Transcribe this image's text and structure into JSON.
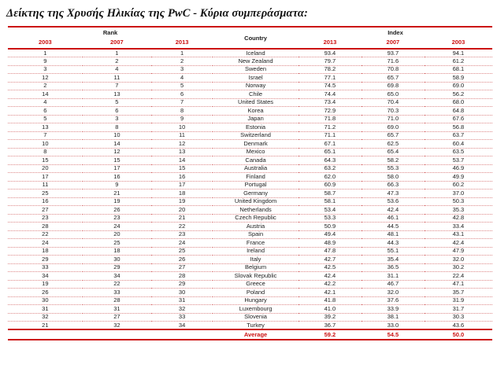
{
  "title": "Δείκτης της Χρυσής Ηλικίας της PwC - Κύρια συμπεράσματα:",
  "colors": {
    "accent_red": "#cc1111",
    "dotted_separator": "#dd8888",
    "text_black": "#1a1a1a"
  },
  "table": {
    "group_headers": {
      "rank": "Rank",
      "country": "Country",
      "index": "Index"
    },
    "rank_years": [
      "2003",
      "2007",
      "2013"
    ],
    "index_years": [
      "2013",
      "2007",
      "2003"
    ],
    "rows": [
      {
        "rank_2003": "1",
        "rank_2007": "1",
        "rank_2013": "1",
        "country": "Iceland",
        "index_2013": "93.4",
        "index_2007": "93.7",
        "index_2003": "94.1"
      },
      {
        "rank_2003": "9",
        "rank_2007": "2",
        "rank_2013": "2",
        "country": "New Zealand",
        "index_2013": "79.7",
        "index_2007": "71.6",
        "index_2003": "61.2"
      },
      {
        "rank_2003": "3",
        "rank_2007": "4",
        "rank_2013": "3",
        "country": "Sweden",
        "index_2013": "78.2",
        "index_2007": "70.8",
        "index_2003": "68.1"
      },
      {
        "rank_2003": "12",
        "rank_2007": "11",
        "rank_2013": "4",
        "country": "Israel",
        "index_2013": "77.1",
        "index_2007": "65.7",
        "index_2003": "58.9"
      },
      {
        "rank_2003": "2",
        "rank_2007": "7",
        "rank_2013": "5",
        "country": "Norway",
        "index_2013": "74.5",
        "index_2007": "69.8",
        "index_2003": "69.0"
      },
      {
        "rank_2003": "14",
        "rank_2007": "13",
        "rank_2013": "6",
        "country": "Chile",
        "index_2013": "74.4",
        "index_2007": "65.0",
        "index_2003": "56.2"
      },
      {
        "rank_2003": "4",
        "rank_2007": "5",
        "rank_2013": "7",
        "country": "United States",
        "index_2013": "73.4",
        "index_2007": "70.4",
        "index_2003": "68.0"
      },
      {
        "rank_2003": "6",
        "rank_2007": "6",
        "rank_2013": "8",
        "country": "Korea",
        "index_2013": "72.9",
        "index_2007": "70.3",
        "index_2003": "64.8"
      },
      {
        "rank_2003": "5",
        "rank_2007": "3",
        "rank_2013": "9",
        "country": "Japan",
        "index_2013": "71.8",
        "index_2007": "71.0",
        "index_2003": "67.6"
      },
      {
        "rank_2003": "13",
        "rank_2007": "8",
        "rank_2013": "10",
        "country": "Estonia",
        "index_2013": "71.2",
        "index_2007": "69.0",
        "index_2003": "56.8"
      },
      {
        "rank_2003": "7",
        "rank_2007": "10",
        "rank_2013": "11",
        "country": "Switzerland",
        "index_2013": "71.1",
        "index_2007": "65.7",
        "index_2003": "63.7"
      },
      {
        "rank_2003": "10",
        "rank_2007": "14",
        "rank_2013": "12",
        "country": "Denmark",
        "index_2013": "67.1",
        "index_2007": "62.5",
        "index_2003": "60.4"
      },
      {
        "rank_2003": "8",
        "rank_2007": "12",
        "rank_2013": "13",
        "country": "Mexico",
        "index_2013": "65.1",
        "index_2007": "65.4",
        "index_2003": "63.5"
      },
      {
        "rank_2003": "15",
        "rank_2007": "15",
        "rank_2013": "14",
        "country": "Canada",
        "index_2013": "64.3",
        "index_2007": "58.2",
        "index_2003": "53.7"
      },
      {
        "rank_2003": "20",
        "rank_2007": "17",
        "rank_2013": "15",
        "country": "Australia",
        "index_2013": "63.2",
        "index_2007": "55.3",
        "index_2003": "46.9"
      },
      {
        "rank_2003": "17",
        "rank_2007": "16",
        "rank_2013": "16",
        "country": "Finland",
        "index_2013": "62.0",
        "index_2007": "58.0",
        "index_2003": "49.9"
      },
      {
        "rank_2003": "11",
        "rank_2007": "9",
        "rank_2013": "17",
        "country": "Portugal",
        "index_2013": "60.9",
        "index_2007": "66.3",
        "index_2003": "60.2"
      },
      {
        "rank_2003": "25",
        "rank_2007": "21",
        "rank_2013": "18",
        "country": "Germany",
        "index_2013": "58.7",
        "index_2007": "47.3",
        "index_2003": "37.0"
      },
      {
        "rank_2003": "16",
        "rank_2007": "19",
        "rank_2013": "19",
        "country": "United Kingdom",
        "index_2013": "58.1",
        "index_2007": "53.6",
        "index_2003": "50.3"
      },
      {
        "rank_2003": "27",
        "rank_2007": "26",
        "rank_2013": "20",
        "country": "Netherlands",
        "index_2013": "53.4",
        "index_2007": "42.4",
        "index_2003": "35.3"
      },
      {
        "rank_2003": "23",
        "rank_2007": "23",
        "rank_2013": "21",
        "country": "Czech Republic",
        "index_2013": "53.3",
        "index_2007": "46.1",
        "index_2003": "42.8"
      },
      {
        "rank_2003": "28",
        "rank_2007": "24",
        "rank_2013": "22",
        "country": "Austria",
        "index_2013": "50.9",
        "index_2007": "44.5",
        "index_2003": "33.4"
      },
      {
        "rank_2003": "22",
        "rank_2007": "20",
        "rank_2013": "23",
        "country": "Spain",
        "index_2013": "49.4",
        "index_2007": "48.1",
        "index_2003": "43.1"
      },
      {
        "rank_2003": "24",
        "rank_2007": "25",
        "rank_2013": "24",
        "country": "France",
        "index_2013": "48.9",
        "index_2007": "44.3",
        "index_2003": "42.4"
      },
      {
        "rank_2003": "18",
        "rank_2007": "18",
        "rank_2013": "25",
        "country": "Ireland",
        "index_2013": "47.8",
        "index_2007": "55.1",
        "index_2003": "47.9"
      },
      {
        "rank_2003": "29",
        "rank_2007": "30",
        "rank_2013": "26",
        "country": "Italy",
        "index_2013": "42.7",
        "index_2007": "35.4",
        "index_2003": "32.0"
      },
      {
        "rank_2003": "33",
        "rank_2007": "29",
        "rank_2013": "27",
        "country": "Belgium",
        "index_2013": "42.5",
        "index_2007": "36.5",
        "index_2003": "30.2"
      },
      {
        "rank_2003": "34",
        "rank_2007": "34",
        "rank_2013": "28",
        "country": "Slovak Republic",
        "index_2013": "42.4",
        "index_2007": "31.1",
        "index_2003": "22.4"
      },
      {
        "rank_2003": "19",
        "rank_2007": "22",
        "rank_2013": "29",
        "country": "Greece",
        "index_2013": "42.2",
        "index_2007": "46.7",
        "index_2003": "47.1"
      },
      {
        "rank_2003": "26",
        "rank_2007": "33",
        "rank_2013": "30",
        "country": "Poland",
        "index_2013": "42.1",
        "index_2007": "32.0",
        "index_2003": "35.7"
      },
      {
        "rank_2003": "30",
        "rank_2007": "28",
        "rank_2013": "31",
        "country": "Hungary",
        "index_2013": "41.8",
        "index_2007": "37.6",
        "index_2003": "31.9"
      },
      {
        "rank_2003": "31",
        "rank_2007": "31",
        "rank_2013": "32",
        "country": "Luxembourg",
        "index_2013": "41.0",
        "index_2007": "33.9",
        "index_2003": "31.7"
      },
      {
        "rank_2003": "32",
        "rank_2007": "27",
        "rank_2013": "33",
        "country": "Slovenia",
        "index_2013": "39.2",
        "index_2007": "38.1",
        "index_2003": "30.3"
      },
      {
        "rank_2003": "21",
        "rank_2007": "32",
        "rank_2013": "34",
        "country": "Turkey",
        "index_2013": "36.7",
        "index_2007": "33.0",
        "index_2003": "43.6"
      }
    ],
    "average": {
      "label": "Average",
      "index_2013": "59.2",
      "index_2007": "54.5",
      "index_2003": "50.0"
    }
  }
}
